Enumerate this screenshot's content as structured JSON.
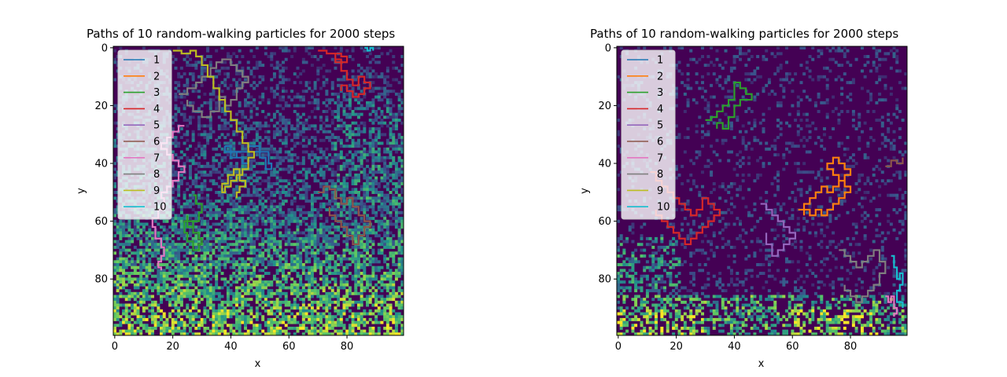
{
  "chart_data": [
    {
      "type": "heatmap",
      "title": "Paths of 10 random-walking particles for 2000 steps",
      "xlabel": "x",
      "ylabel": "y",
      "xlim": [
        0,
        99
      ],
      "ylim": [
        99,
        0
      ],
      "xticks": [
        0,
        20,
        40,
        60,
        80
      ],
      "yticks": [
        0,
        20,
        40,
        60,
        80
      ],
      "legend": [
        "1",
        "2",
        "3",
        "4",
        "5",
        "6",
        "7",
        "8",
        "9",
        "10"
      ],
      "legend_loc": "upper left",
      "series": [
        {
          "name": "1",
          "color": "#1f77b4",
          "x": [
            38,
            40,
            42,
            44,
            46,
            48,
            50,
            52,
            54,
            53,
            50,
            46,
            42,
            40,
            38
          ],
          "y": [
            34,
            36,
            38,
            40,
            38,
            36,
            38,
            42,
            40,
            36,
            34,
            36,
            38,
            36,
            34
          ]
        },
        {
          "name": "2",
          "color": "#ff7f0e",
          "x": [],
          "y": []
        },
        {
          "name": "3",
          "color": "#2ca02c",
          "x": [
            27,
            28,
            30,
            29,
            27,
            25,
            24,
            25,
            27,
            29,
            30,
            29,
            27,
            25
          ],
          "y": [
            51,
            54,
            57,
            60,
            62,
            60,
            64,
            67,
            70,
            68,
            66,
            64,
            60,
            58
          ]
        },
        {
          "name": "4",
          "color": "#d62728",
          "x": [
            70,
            73,
            76,
            78,
            80,
            78,
            76,
            78,
            80,
            82,
            84,
            86,
            88,
            86,
            84,
            82,
            80,
            78
          ],
          "y": [
            1,
            2,
            4,
            5,
            3,
            2,
            5,
            8,
            11,
            13,
            10,
            12,
            14,
            16,
            17,
            15,
            13,
            15
          ]
        },
        {
          "name": "5",
          "color": "#9467bd",
          "x": [],
          "y": []
        },
        {
          "name": "6",
          "color": "#8c564b",
          "x": [
            70,
            72,
            74,
            76,
            78,
            80,
            82,
            84,
            86,
            88,
            86,
            84,
            82,
            80,
            78,
            76,
            74
          ],
          "y": [
            50,
            48,
            49,
            52,
            54,
            52,
            55,
            58,
            60,
            62,
            65,
            68,
            65,
            62,
            60,
            58,
            55
          ]
        },
        {
          "name": "7",
          "color": "#e377c2",
          "x": [
            24,
            22,
            20,
            18,
            16,
            18,
            20,
            22,
            24,
            22,
            20,
            18,
            16,
            17,
            15,
            13,
            14,
            16,
            17,
            16,
            15,
            16
          ],
          "y": [
            27,
            29,
            31,
            33,
            35,
            37,
            39,
            41,
            43,
            46,
            48,
            50,
            52,
            56,
            59,
            62,
            66,
            69,
            72,
            74,
            76,
            77
          ]
        },
        {
          "name": "8",
          "color": "#7f7f7f",
          "x": [
            22,
            25,
            28,
            30,
            33,
            35,
            37,
            40,
            42,
            44,
            46,
            44,
            42,
            40,
            38,
            36,
            33,
            30,
            27,
            25
          ],
          "y": [
            16,
            14,
            12,
            10,
            7,
            5,
            4,
            6,
            8,
            10,
            12,
            14,
            18,
            20,
            17,
            22,
            24,
            22,
            20,
            18
          ]
        },
        {
          "name": "9",
          "color": "#bcbd22",
          "x": [
            20,
            23,
            26,
            28,
            30,
            32,
            34,
            36,
            38,
            40,
            42,
            44,
            46,
            48,
            46,
            44,
            42,
            40,
            38,
            37,
            39,
            41,
            43,
            45,
            43,
            42
          ],
          "y": [
            1,
            2,
            1,
            3,
            6,
            10,
            14,
            18,
            22,
            25,
            29,
            33,
            36,
            38,
            42,
            44,
            46,
            48,
            50,
            47,
            44,
            42,
            46,
            48,
            50,
            52
          ]
        },
        {
          "name": "10",
          "color": "#17becf",
          "x": [
            86,
            87,
            88,
            89
          ],
          "y": [
            0,
            1,
            0,
            1
          ]
        }
      ]
    },
    {
      "type": "heatmap",
      "title": "Paths of 10 random-walking particles for 2000 steps",
      "xlabel": "x",
      "ylabel": "y",
      "xlim": [
        0,
        99
      ],
      "ylim": [
        99,
        0
      ],
      "xticks": [
        0,
        20,
        40,
        60,
        80
      ],
      "yticks": [
        0,
        20,
        40,
        60,
        80
      ],
      "legend": [
        "1",
        "2",
        "3",
        "4",
        "5",
        "6",
        "7",
        "8",
        "9",
        "10"
      ],
      "legend_loc": "upper left",
      "series": [
        {
          "name": "1",
          "color": "#1f77b4",
          "x": [],
          "y": []
        },
        {
          "name": "2",
          "color": "#ff7f0e",
          "x": [
            62,
            64,
            66,
            68,
            70,
            72,
            74,
            76,
            78,
            80,
            78,
            76,
            74,
            72,
            74,
            76,
            78,
            80,
            78,
            76,
            74,
            72,
            70,
            68,
            66,
            64
          ],
          "y": [
            56,
            54,
            52,
            50,
            48,
            50,
            48,
            46,
            44,
            42,
            40,
            38,
            40,
            42,
            44,
            46,
            48,
            50,
            52,
            54,
            56,
            58,
            56,
            58,
            56,
            58
          ]
        },
        {
          "name": "3",
          "color": "#2ca02c",
          "x": [
            30,
            32,
            34,
            36,
            38,
            40,
            40,
            42,
            44,
            46,
            42,
            40,
            38,
            36,
            34
          ],
          "y": [
            25,
            24,
            22,
            20,
            18,
            15,
            12,
            14,
            16,
            18,
            20,
            24,
            28,
            26,
            28
          ]
        },
        {
          "name": "4",
          "color": "#d62728",
          "x": [
            11,
            13,
            15,
            17,
            19,
            21,
            23,
            25,
            27,
            29,
            31,
            33,
            35,
            33,
            31,
            29,
            27,
            25,
            23,
            21,
            19,
            17,
            15,
            13
          ],
          "y": [
            43,
            46,
            48,
            50,
            52,
            54,
            56,
            58,
            56,
            52,
            54,
            56,
            58,
            60,
            62,
            64,
            66,
            68,
            66,
            64,
            62,
            60,
            58,
            56
          ]
        },
        {
          "name": "5",
          "color": "#9467bd",
          "x": [
            49,
            51,
            53,
            55,
            57,
            59,
            61,
            59,
            57,
            55,
            53,
            51
          ],
          "y": [
            54,
            56,
            58,
            60,
            62,
            64,
            66,
            68,
            70,
            72,
            68,
            64
          ]
        },
        {
          "name": "6",
          "color": "#8c564b",
          "x": [
            92,
            94,
            96,
            98
          ],
          "y": [
            41,
            39,
            40,
            38
          ]
        },
        {
          "name": "7",
          "color": "#e377c2",
          "x": [
            92,
            93,
            94,
            95,
            96,
            95
          ],
          "y": [
            86,
            88,
            86,
            90,
            92,
            93
          ]
        },
        {
          "name": "8",
          "color": "#7f7f7f",
          "x": [
            76,
            78,
            80,
            82,
            84,
            86,
            88,
            90,
            92,
            90,
            88,
            86,
            84,
            82,
            80,
            78
          ],
          "y": [
            70,
            72,
            74,
            76,
            74,
            72,
            70,
            74,
            78,
            82,
            84,
            86,
            88,
            86,
            84,
            82
          ]
        },
        {
          "name": "9",
          "color": "#bcbd22",
          "x": [],
          "y": []
        },
        {
          "name": "10",
          "color": "#17becf",
          "x": [
            94,
            95,
            96,
            97,
            98,
            97,
            96,
            98
          ],
          "y": [
            72,
            76,
            80,
            78,
            82,
            84,
            88,
            90
          ]
        }
      ]
    }
  ],
  "colors": {
    "background_dark": "#440154",
    "viridis_stops": [
      "#440154",
      "#3b528b",
      "#21918c",
      "#5ec962",
      "#fde725"
    ]
  }
}
